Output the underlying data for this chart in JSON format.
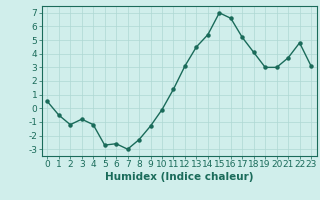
{
  "x": [
    0,
    1,
    2,
    3,
    4,
    5,
    6,
    7,
    8,
    9,
    10,
    11,
    12,
    13,
    14,
    15,
    16,
    17,
    18,
    19,
    20,
    21,
    22,
    23
  ],
  "y": [
    0.5,
    -0.5,
    -1.2,
    -0.8,
    -1.2,
    -2.7,
    -2.6,
    -3.0,
    -2.3,
    -1.3,
    -0.1,
    1.4,
    3.1,
    4.5,
    5.4,
    7.0,
    6.6,
    5.2,
    4.1,
    3.0,
    3.0,
    3.7,
    4.8,
    3.1
  ],
  "line_color": "#1a6b5a",
  "marker": "o",
  "markersize": 2.2,
  "linewidth": 1.0,
  "background_color": "#d0eeeb",
  "grid_color": "#aed8d4",
  "xlabel": "Humidex (Indice chaleur)",
  "ylim": [
    -3.5,
    7.5
  ],
  "xlim": [
    -0.5,
    23.5
  ],
  "yticks": [
    -3,
    -2,
    -1,
    0,
    1,
    2,
    3,
    4,
    5,
    6,
    7
  ],
  "xticks": [
    0,
    1,
    2,
    3,
    4,
    5,
    6,
    7,
    8,
    9,
    10,
    11,
    12,
    13,
    14,
    15,
    16,
    17,
    18,
    19,
    20,
    21,
    22,
    23
  ],
  "tick_color": "#1a6b5a",
  "label_color": "#1a6b5a",
  "xlabel_fontsize": 7.5,
  "tick_fontsize": 6.5
}
